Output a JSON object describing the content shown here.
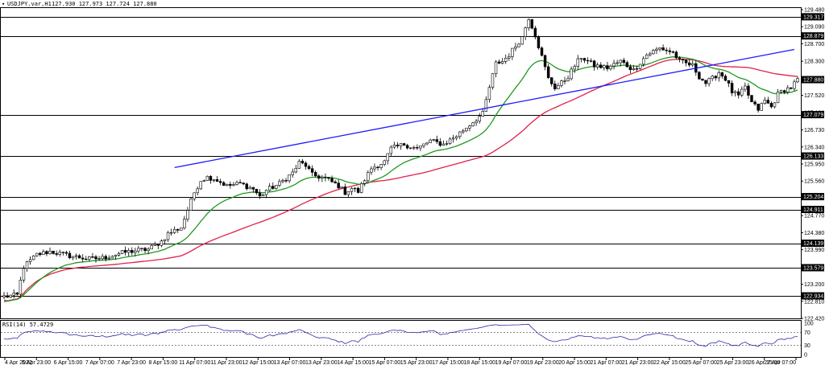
{
  "header": {
    "symbol": "USDJPY.var,H1",
    "ohlc": "127.930 127.973 127.724 127.880",
    "rsi_label": "RSI(14) 57.4729"
  },
  "colors": {
    "ma_fast": "#1f9a1f",
    "ma_slow": "#e0204a",
    "trendline": "#1a1aff",
    "candle": "#000000",
    "level_tag_bg": "#000000",
    "rsi_line": "#2a2aa6"
  },
  "chart_data": {
    "type": "candlestick",
    "y_axis": {
      "min": 122.42,
      "max": 129.48,
      "ticks": [
        "129.480",
        "129.090",
        "128.700",
        "128.300",
        "127.910",
        "127.520",
        "127.130",
        "126.730",
        "126.340",
        "125.950",
        "125.560",
        "125.170",
        "124.770",
        "124.380",
        "123.990",
        "123.600",
        "123.200",
        "122.810",
        "122.420"
      ]
    },
    "x_labels": [
      "4 Apr 2022",
      "5 Apr 23:00",
      "6 Apr 15:00",
      "7 Apr 07:00",
      "7 Apr 23:00",
      "8 Apr 15:00",
      "11 Apr 07:00",
      "11 Apr 23:00",
      "12 Apr 15:00",
      "13 Apr 07:00",
      "13 Apr 23:00",
      "14 Apr 15:00",
      "15 Apr 07:00",
      "15 Apr 23:00",
      "17 Apr 15:00",
      "18 Apr 15:00",
      "19 Apr 07:00",
      "19 Apr 23:00",
      "20 Apr 15:00",
      "21 Apr 07:00",
      "21 Apr 23:00",
      "22 Apr 15:00",
      "25 Apr 07:00",
      "25 Apr 23:00",
      "26 Apr 15:00",
      "27 Apr 07:00"
    ],
    "levels": [
      {
        "value": 129.317,
        "label": "129.317"
      },
      {
        "value": 128.879,
        "label": "128.879"
      },
      {
        "value": 127.079,
        "label": "127.079"
      },
      {
        "value": 126.133,
        "label": "126.133"
      },
      {
        "value": 125.204,
        "label": "125.204"
      },
      {
        "value": 124.911,
        "label": "124.911"
      },
      {
        "value": 124.139,
        "label": "124.139"
      },
      {
        "value": 123.579,
        "label": "123.579"
      },
      {
        "value": 122.934,
        "label": "122.934"
      }
    ],
    "current_price": {
      "value": 127.88,
      "label": "127.880"
    },
    "trendline": {
      "start": {
        "t": 52,
        "v": 125.87
      },
      "end": {
        "t": 241,
        "v": 128.57
      }
    },
    "n_bars": 243,
    "price_path": [
      [
        0,
        122.92
      ],
      [
        4,
        122.95
      ],
      [
        6,
        123.6
      ],
      [
        10,
        123.88
      ],
      [
        14,
        123.95
      ],
      [
        20,
        123.85
      ],
      [
        26,
        123.78
      ],
      [
        30,
        123.8
      ],
      [
        36,
        123.92
      ],
      [
        40,
        123.97
      ],
      [
        44,
        124.0
      ],
      [
        48,
        124.18
      ],
      [
        50,
        124.36
      ],
      [
        54,
        124.5
      ],
      [
        56,
        124.9
      ],
      [
        58,
        125.3
      ],
      [
        60,
        125.58
      ],
      [
        62,
        125.65
      ],
      [
        64,
        125.62
      ],
      [
        68,
        125.45
      ],
      [
        72,
        125.5
      ],
      [
        76,
        125.38
      ],
      [
        78,
        125.2
      ],
      [
        80,
        125.35
      ],
      [
        84,
        125.5
      ],
      [
        88,
        125.75
      ],
      [
        90,
        125.98
      ],
      [
        92,
        125.92
      ],
      [
        94,
        125.7
      ],
      [
        98,
        125.62
      ],
      [
        102,
        125.45
      ],
      [
        104,
        125.3
      ],
      [
        106,
        125.4
      ],
      [
        108,
        125.32
      ],
      [
        110,
        125.6
      ],
      [
        112,
        125.85
      ],
      [
        116,
        126.0
      ],
      [
        118,
        126.3
      ],
      [
        122,
        126.4
      ],
      [
        126,
        126.3
      ],
      [
        130,
        126.48
      ],
      [
        134,
        126.4
      ],
      [
        138,
        126.6
      ],
      [
        142,
        126.85
      ],
      [
        146,
        127.1
      ],
      [
        148,
        127.7
      ],
      [
        150,
        128.25
      ],
      [
        152,
        128.3
      ],
      [
        154,
        128.45
      ],
      [
        156,
        128.65
      ],
      [
        158,
        128.85
      ],
      [
        160,
        129.3
      ],
      [
        162,
        128.9
      ],
      [
        164,
        128.4
      ],
      [
        166,
        127.9
      ],
      [
        168,
        127.7
      ],
      [
        170,
        127.8
      ],
      [
        172,
        127.95
      ],
      [
        174,
        128.2
      ],
      [
        176,
        128.4
      ],
      [
        180,
        128.2
      ],
      [
        184,
        128.15
      ],
      [
        188,
        128.3
      ],
      [
        192,
        128.1
      ],
      [
        196,
        128.45
      ],
      [
        200,
        128.6
      ],
      [
        204,
        128.5
      ],
      [
        206,
        128.3
      ],
      [
        210,
        128.2
      ],
      [
        212,
        127.95
      ],
      [
        214,
        127.8
      ],
      [
        216,
        127.9
      ],
      [
        218,
        128.05
      ],
      [
        220,
        127.9
      ],
      [
        222,
        127.6
      ],
      [
        224,
        127.5
      ],
      [
        226,
        127.7
      ],
      [
        228,
        127.35
      ],
      [
        230,
        127.2
      ],
      [
        232,
        127.4
      ],
      [
        234,
        127.25
      ],
      [
        236,
        127.55
      ],
      [
        238,
        127.65
      ],
      [
        240,
        127.7
      ],
      [
        242,
        127.88
      ]
    ],
    "rsi": {
      "min": 0,
      "max": 100,
      "ticks": [
        "100",
        "70",
        "30",
        "0"
      ],
      "levels": [
        70,
        30
      ],
      "value": 57.4729
    }
  }
}
